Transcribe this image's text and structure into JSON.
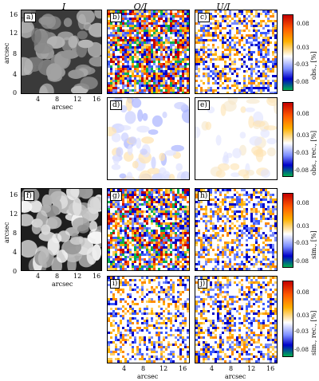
{
  "headers": {
    "col1": "I",
    "col2": "Q/I",
    "col3": "U/I"
  },
  "axis": {
    "ylabel": "arcsec",
    "xlabel": "arcsec",
    "y_ticks": [
      "0",
      "4",
      "8",
      "12",
      "16"
    ],
    "x_ticks": [
      "4",
      "8",
      "12",
      "16"
    ]
  },
  "panels": {
    "a": "a)",
    "b": "b)",
    "c": "c)",
    "d": "d)",
    "e": "e)",
    "f": "f)",
    "g": "g)",
    "h": "h)",
    "i": "i)",
    "j": "j)"
  },
  "colorbars": [
    {
      "label": "obs., [%]",
      "ticks": [
        "0.08",
        "0.03",
        "-0.03",
        "-0.08"
      ]
    },
    {
      "label": "obs., rec., [%]",
      "ticks": [
        "0.08",
        "0.03",
        "-0.03",
        "-0.08"
      ]
    },
    {
      "label": "sim., [%]",
      "ticks": [
        "0.08",
        "0.03",
        "-0.03",
        "-0.08"
      ]
    },
    {
      "label": "sim., rec., [%]",
      "ticks": [
        "0.08",
        "0.03",
        "-0.03",
        "-0.08"
      ]
    }
  ],
  "colors": {
    "red": "#c40000",
    "orange": "#ff8a00",
    "white": "#ffffff",
    "blue": "#0000c8",
    "green": "#00b050"
  }
}
